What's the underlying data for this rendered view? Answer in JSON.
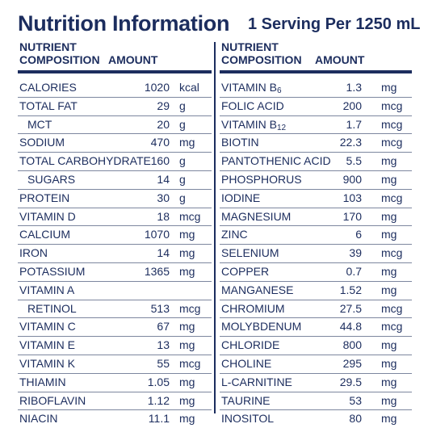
{
  "header": {
    "title": "Nutrition Information",
    "serving": "1 Serving Per 1250 mL"
  },
  "columns": {
    "composition_label_line1": "NUTRIENT",
    "composition_label_line2": "COMPOSITION",
    "amount_label": "AMOUNT"
  },
  "left_rows": [
    {
      "name": "CALORIES",
      "value": "1020",
      "unit": "kcal"
    },
    {
      "name": "TOTAL FAT",
      "value": "29",
      "unit": "g"
    },
    {
      "name": "MCT",
      "value": "20",
      "unit": "g",
      "indent": true
    },
    {
      "name": "SODIUM",
      "value": "470",
      "unit": "mg"
    },
    {
      "name": "TOTAL CARBOHYDRATE",
      "value": "160",
      "unit": "g"
    },
    {
      "name": "SUGARS",
      "value": "14",
      "unit": "g",
      "indent": true
    },
    {
      "name": "PROTEIN",
      "value": "30",
      "unit": "g"
    },
    {
      "name": "VITAMIN D",
      "value": "18",
      "unit": "mcg"
    },
    {
      "name": "CALCIUM",
      "value": "1070",
      "unit": "mg"
    },
    {
      "name": "IRON",
      "value": "14",
      "unit": "mg"
    },
    {
      "name": "POTASSIUM",
      "value": "1365",
      "unit": "mg"
    },
    {
      "name": "VITAMIN A",
      "value": "",
      "unit": ""
    },
    {
      "name": "RETINOL",
      "value": "513",
      "unit": "mcg",
      "indent": true
    },
    {
      "name": "VITAMIN C",
      "value": "67",
      "unit": "mg"
    },
    {
      "name": "VITAMIN E",
      "value": "13",
      "unit": "mg"
    },
    {
      "name": "VITAMIN K",
      "value": "55",
      "unit": "mcg"
    },
    {
      "name": "THIAMIN",
      "value": "1.05",
      "unit": "mg"
    },
    {
      "name": "RIBOFLAVIN",
      "value": "1.12",
      "unit": "mg"
    },
    {
      "name": "NIACIN",
      "value": "11.1",
      "unit": "mg"
    }
  ],
  "right_rows": [
    {
      "name": "VITAMIN B",
      "sub": "6",
      "value": "1.3",
      "unit": "mg"
    },
    {
      "name": "FOLIC ACID",
      "value": "200",
      "unit": "mcg"
    },
    {
      "name": "VITAMIN B",
      "sub": "12",
      "value": "1.7",
      "unit": "mcg"
    },
    {
      "name": "BIOTIN",
      "value": "22.3",
      "unit": "mcg"
    },
    {
      "name": "PANTOTHENIC ACID",
      "value": "5.5",
      "unit": "mg"
    },
    {
      "name": "PHOSPHORUS",
      "value": "900",
      "unit": "mg"
    },
    {
      "name": "IODINE",
      "value": "103",
      "unit": "mcg"
    },
    {
      "name": "MAGNESIUM",
      "value": "170",
      "unit": "mg"
    },
    {
      "name": "ZINC",
      "value": "6",
      "unit": "mg"
    },
    {
      "name": "SELENIUM",
      "value": "39",
      "unit": "mcg"
    },
    {
      "name": "COPPER",
      "value": "0.7",
      "unit": "mg"
    },
    {
      "name": "MANGANESE",
      "value": "1.52",
      "unit": "mg"
    },
    {
      "name": "CHROMIUM",
      "value": "27.5",
      "unit": "mcg"
    },
    {
      "name": "MOLYBDENUM",
      "value": "44.8",
      "unit": "mcg"
    },
    {
      "name": "CHLORIDE",
      "value": "800",
      "unit": "mg"
    },
    {
      "name": "CHOLINE",
      "value": "295",
      "unit": "mg"
    },
    {
      "name": "L-CARNITINE",
      "value": "29.5",
      "unit": "mg"
    },
    {
      "name": "TAURINE",
      "value": "53",
      "unit": "mg"
    },
    {
      "name": "INOSITOL",
      "value": "80",
      "unit": "mg"
    }
  ],
  "colors": {
    "text": "#1c2d5e",
    "rule": "#1c2d5e",
    "row_divider": "#7d879f",
    "background": "#ffffff"
  }
}
